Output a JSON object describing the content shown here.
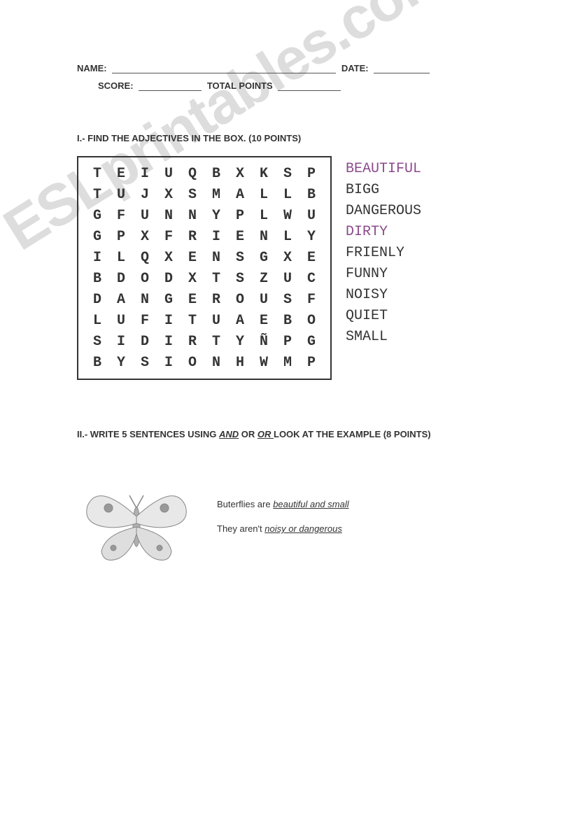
{
  "header": {
    "name_label": "NAME:",
    "date_label": "DATE:",
    "score_label": "SCORE:",
    "total_points_label": "TOTAL POINTS"
  },
  "section1": {
    "title": "I.- FIND THE ADJECTIVES IN THE BOX.  (10 POINTS)",
    "grid": [
      [
        "T",
        "E",
        "I",
        "U",
        "Q",
        "B",
        "X",
        "K",
        "S",
        "P"
      ],
      [
        "T",
        "U",
        "J",
        "X",
        "S",
        "M",
        "A",
        "L",
        "L",
        "B"
      ],
      [
        "G",
        "F",
        "U",
        "N",
        "N",
        "Y",
        "P",
        "L",
        "W",
        "U"
      ],
      [
        "G",
        "P",
        "X",
        "F",
        "R",
        "I",
        "E",
        "N",
        "L",
        "Y"
      ],
      [
        "I",
        "L",
        "Q",
        "X",
        "E",
        "N",
        "S",
        "G",
        "X",
        "E"
      ],
      [
        "B",
        "D",
        "O",
        "D",
        "X",
        "T",
        "S",
        "Z",
        "U",
        "C"
      ],
      [
        "D",
        "A",
        "N",
        "G",
        "E",
        "R",
        "O",
        "U",
        "S",
        "F"
      ],
      [
        "L",
        "U",
        "F",
        "I",
        "T",
        "U",
        "A",
        "E",
        "B",
        "O"
      ],
      [
        "S",
        "I",
        "D",
        "I",
        "R",
        "T",
        "Y",
        "Ñ",
        "P",
        "G"
      ],
      [
        "B",
        "Y",
        "S",
        "I",
        "O",
        "N",
        "H",
        "W",
        "M",
        "P"
      ]
    ],
    "words": [
      "BEAUTIFUL",
      "BIGG",
      "DANGEROUS",
      "DIRTY",
      "FRIENLY",
      "FUNNY",
      "NOISY",
      "QUIET",
      "SMALL"
    ]
  },
  "section2": {
    "title_prefix": "II.-  WRITE 5 SENTENCES USING ",
    "and": "AND",
    "mid": "  OR  ",
    "or": "OR ",
    "title_suffix": "LOOK AT THE EXAMPLE (8 POINTS)",
    "line1_prefix": "Buterflies are ",
    "line1_answer": "      beautiful and small       ",
    "line2_prefix": "They aren't ",
    "line2_answer": "      noisy or dangerous         "
  },
  "watermark": "ESLprintables.com",
  "colors": {
    "text": "#333333",
    "accent_word": "#8b4a8b",
    "background": "#ffffff",
    "watermark": "rgba(150,150,150,0.32)"
  }
}
